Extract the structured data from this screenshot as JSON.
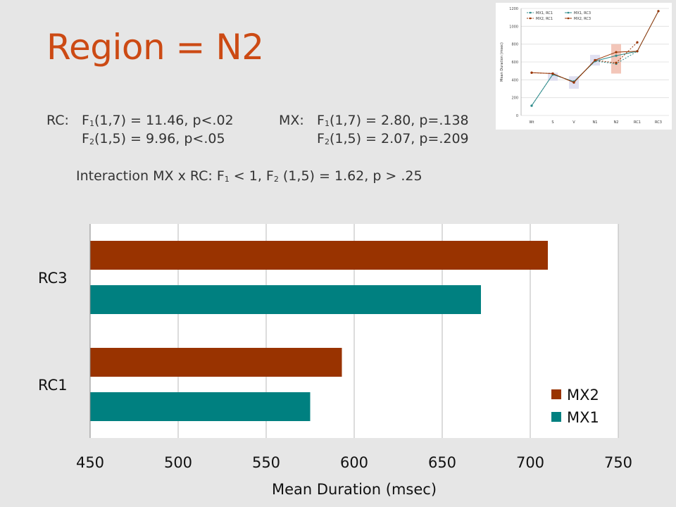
{
  "slide": {
    "title": "Region = N2",
    "rc_label": "RC:",
    "rc_f1_prefix": "F",
    "rc_f1_sub": "1",
    "rc_f1_rest": "(1,7) = 11.46, p<.02",
    "rc_f2_prefix": "F",
    "rc_f2_sub": "2",
    "rc_f2_rest": "(1,5) = 9.96, p<.05",
    "mx_label": "MX:",
    "mx_f1_prefix": "F",
    "mx_f1_sub": "1",
    "mx_f1_rest": "(1,7) = 2.80, p=.138",
    "mx_f2_prefix": "F",
    "mx_f2_sub": "2",
    "mx_f2_rest": "(1,5) = 2.07, p=.209",
    "interaction_prefix": "Interaction MX x RC:  F",
    "interaction_sub1": "1",
    "interaction_mid": " < 1, F",
    "interaction_sub2": "2",
    "interaction_rest": " (1,5) = 1.62, p > .25"
  },
  "chart_data": [
    {
      "type": "bar",
      "orientation": "horizontal",
      "categories": [
        "RC3",
        "RC1"
      ],
      "series": [
        {
          "name": "MX2",
          "color": "#993300",
          "values": [
            710,
            593
          ]
        },
        {
          "name": "MX1",
          "color": "#008080",
          "values": [
            672,
            575
          ]
        }
      ],
      "xlabel": "Mean Duration (msec)",
      "xlim": [
        450,
        750
      ],
      "xticks": [
        450,
        500,
        550,
        600,
        650,
        700,
        750
      ],
      "grid": true,
      "legend": "bottom-right",
      "legend_order": [
        "MX2",
        "MX1"
      ]
    },
    {
      "type": "line",
      "categories": [
        "Wt",
        "S",
        "V",
        "N1",
        "N2",
        "RC1",
        "RC3"
      ],
      "ylabel": "Mean Duration (msec)",
      "ylim": [
        0,
        1200
      ],
      "yticks": [
        0,
        200,
        400,
        600,
        800,
        1000,
        1200
      ],
      "grid": true,
      "legend": "top",
      "series": [
        {
          "name": "MX1, RC1",
          "color": "#2e8b8b",
          "dashed": true,
          "values": [
            110,
            460,
            380,
            610,
            580,
            720,
            null
          ]
        },
        {
          "name": "MX1, RC3",
          "color": "#2e8b8b",
          "dashed": false,
          "values": [
            110,
            460,
            380,
            610,
            670,
            720,
            1170
          ]
        },
        {
          "name": "MX2, RC1",
          "color": "#993300",
          "dashed": true,
          "values": [
            480,
            470,
            370,
            620,
            590,
            820,
            null
          ]
        },
        {
          "name": "MX2, RC3",
          "color": "#993300",
          "dashed": false,
          "values": [
            480,
            470,
            370,
            620,
            710,
            720,
            1170
          ]
        }
      ]
    }
  ]
}
